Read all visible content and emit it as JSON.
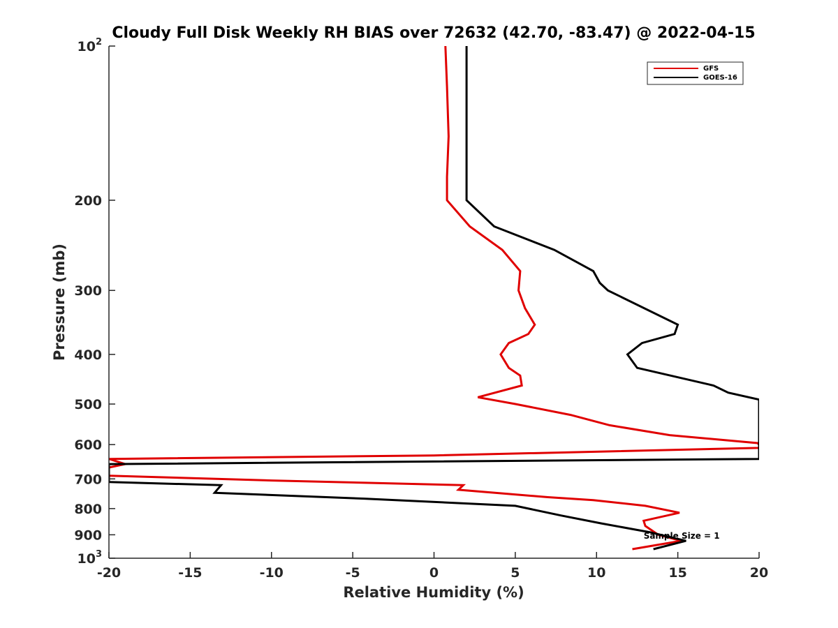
{
  "chart_data": {
    "type": "line",
    "title": "Cloudy Full Disk Weekly RH BIAS over 72632 (42.70, -83.47) @ 2022-04-15",
    "xlabel": "Relative Humidity (%)",
    "ylabel": "Pressure (mb)",
    "xlim": [
      -20,
      20
    ],
    "ylim": [
      100,
      1000
    ],
    "y_scale": "log",
    "y_reversed": true,
    "grid": false,
    "legend_position": "top-right",
    "x_ticks": [
      -20,
      -15,
      -10,
      -5,
      0,
      5,
      10,
      15,
      20
    ],
    "x_tick_labels": [
      "-20",
      "-15",
      "-10",
      "-5",
      "0",
      "5",
      "10",
      "15",
      "20"
    ],
    "y_ticks": [
      {
        "value": 100,
        "base": "10",
        "exp": "2"
      },
      {
        "value": 200,
        "label": "200"
      },
      {
        "value": 300,
        "label": "300"
      },
      {
        "value": 400,
        "label": "400"
      },
      {
        "value": 500,
        "label": "500"
      },
      {
        "value": 600,
        "label": "600"
      },
      {
        "value": 700,
        "label": "700"
      },
      {
        "value": 800,
        "label": "800"
      },
      {
        "value": 900,
        "label": "900"
      },
      {
        "value": 1000,
        "base": "10",
        "exp": "3"
      }
    ],
    "series": [
      {
        "name": "GFS",
        "color": "#e00000",
        "points": [
          [
            0.7,
            100
          ],
          [
            0.8,
            120
          ],
          [
            0.9,
            150
          ],
          [
            0.8,
            180
          ],
          [
            0.8,
            200
          ],
          [
            2.2,
            225
          ],
          [
            4.2,
            250
          ],
          [
            5.3,
            275
          ],
          [
            5.2,
            300
          ],
          [
            5.6,
            325
          ],
          [
            6.2,
            350
          ],
          [
            5.8,
            365
          ],
          [
            4.6,
            380
          ],
          [
            4.1,
            400
          ],
          [
            4.6,
            425
          ],
          [
            5.3,
            440
          ],
          [
            5.4,
            460
          ],
          [
            2.7,
            485
          ],
          [
            5.0,
            500
          ],
          [
            8.4,
            525
          ],
          [
            10.8,
            550
          ],
          [
            14.5,
            575
          ],
          [
            19.9,
            596
          ],
          [
            20.0,
            600
          ],
          [
            20.0,
            609
          ],
          [
            0.0,
            630
          ],
          [
            -20.0,
            640
          ],
          [
            -19.0,
            655
          ],
          [
            -20.0,
            665
          ],
          [
            -20.0,
            690
          ],
          [
            -10.0,
            705
          ],
          [
            1.8,
            720
          ],
          [
            1.5,
            735
          ],
          [
            7.0,
            760
          ],
          [
            9.8,
            770
          ],
          [
            13.0,
            790
          ],
          [
            15.1,
            815
          ],
          [
            12.9,
            845
          ],
          [
            13.0,
            865
          ],
          [
            13.8,
            900
          ],
          [
            15.2,
            925
          ],
          [
            12.2,
            960
          ]
        ]
      },
      {
        "name": "GOES-16",
        "color": "#000000",
        "points": [
          [
            2.0,
            100
          ],
          [
            2.0,
            120
          ],
          [
            2.0,
            150
          ],
          [
            2.0,
            180
          ],
          [
            2.0,
            200
          ],
          [
            3.7,
            225
          ],
          [
            7.4,
            250
          ],
          [
            9.8,
            275
          ],
          [
            10.2,
            290
          ],
          [
            10.7,
            300
          ],
          [
            15.0,
            350
          ],
          [
            14.8,
            365
          ],
          [
            12.8,
            380
          ],
          [
            11.9,
            400
          ],
          [
            12.5,
            425
          ],
          [
            17.2,
            460
          ],
          [
            18.1,
            475
          ],
          [
            20.0,
            490
          ],
          [
            20.0,
            640
          ],
          [
            -20.0,
            655
          ],
          [
            -20.0,
            710
          ],
          [
            -13.1,
            720
          ],
          [
            -13.5,
            745
          ],
          [
            -4.3,
            765
          ],
          [
            5.0,
            790
          ],
          [
            7.8,
            825
          ],
          [
            10.3,
            855
          ],
          [
            13.3,
            890
          ],
          [
            15.5,
            925
          ],
          [
            13.5,
            960
          ]
        ]
      }
    ],
    "legend": [
      {
        "name": "GFS",
        "color": "#e00000"
      },
      {
        "name": "GOES-16",
        "color": "#000000"
      }
    ],
    "annotations": [
      {
        "text": "Sample Size = 1",
        "x": 12.9,
        "y": 905
      }
    ]
  }
}
